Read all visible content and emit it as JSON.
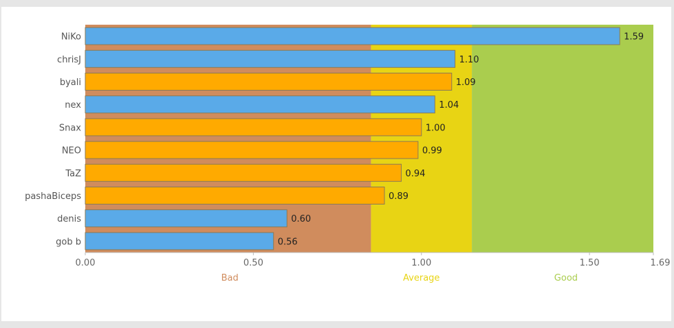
{
  "chart_data": {
    "type": "bar",
    "orientation": "horizontal",
    "categories": [
      "NiKo",
      "chrisJ",
      "byali",
      "nex",
      "Snax",
      "NEO",
      "TaZ",
      "pashaBiceps",
      "denis",
      "gob b"
    ],
    "values": [
      1.59,
      1.1,
      1.09,
      1.04,
      1.0,
      0.99,
      0.94,
      0.89,
      0.6,
      0.56
    ],
    "value_labels": [
      "1.59",
      "1.10",
      "1.09",
      "1.04",
      "1.00",
      "0.99",
      "0.94",
      "0.89",
      "0.60",
      "0.56"
    ],
    "bar_colors": [
      "#5aaae8",
      "#5aaae8",
      "#ffaa00",
      "#5aaae8",
      "#ffaa00",
      "#ffaa00",
      "#ffaa00",
      "#ffaa00",
      "#5aaae8",
      "#5aaae8"
    ],
    "xlim": [
      0,
      1.69
    ],
    "xticks": [
      0,
      0.5,
      1.0,
      1.5,
      1.69
    ],
    "xtick_labels": [
      "0.00",
      "0.50",
      "1.00",
      "1.50",
      "1.69"
    ],
    "bands": [
      {
        "label": "Bad",
        "from": 0,
        "to": 0.85,
        "color": "#d08c5d",
        "label_color": "#d08c5d"
      },
      {
        "label": "Average",
        "from": 0.85,
        "to": 1.15,
        "color": "#e8d414",
        "label_color": "#e8d414"
      },
      {
        "label": "Good",
        "from": 1.15,
        "to": 1.69,
        "color": "#aacd4e",
        "label_color": "#aacd4e"
      }
    ],
    "title": "",
    "xlabel": "",
    "ylabel": "",
    "grid": false,
    "legend": "none"
  }
}
